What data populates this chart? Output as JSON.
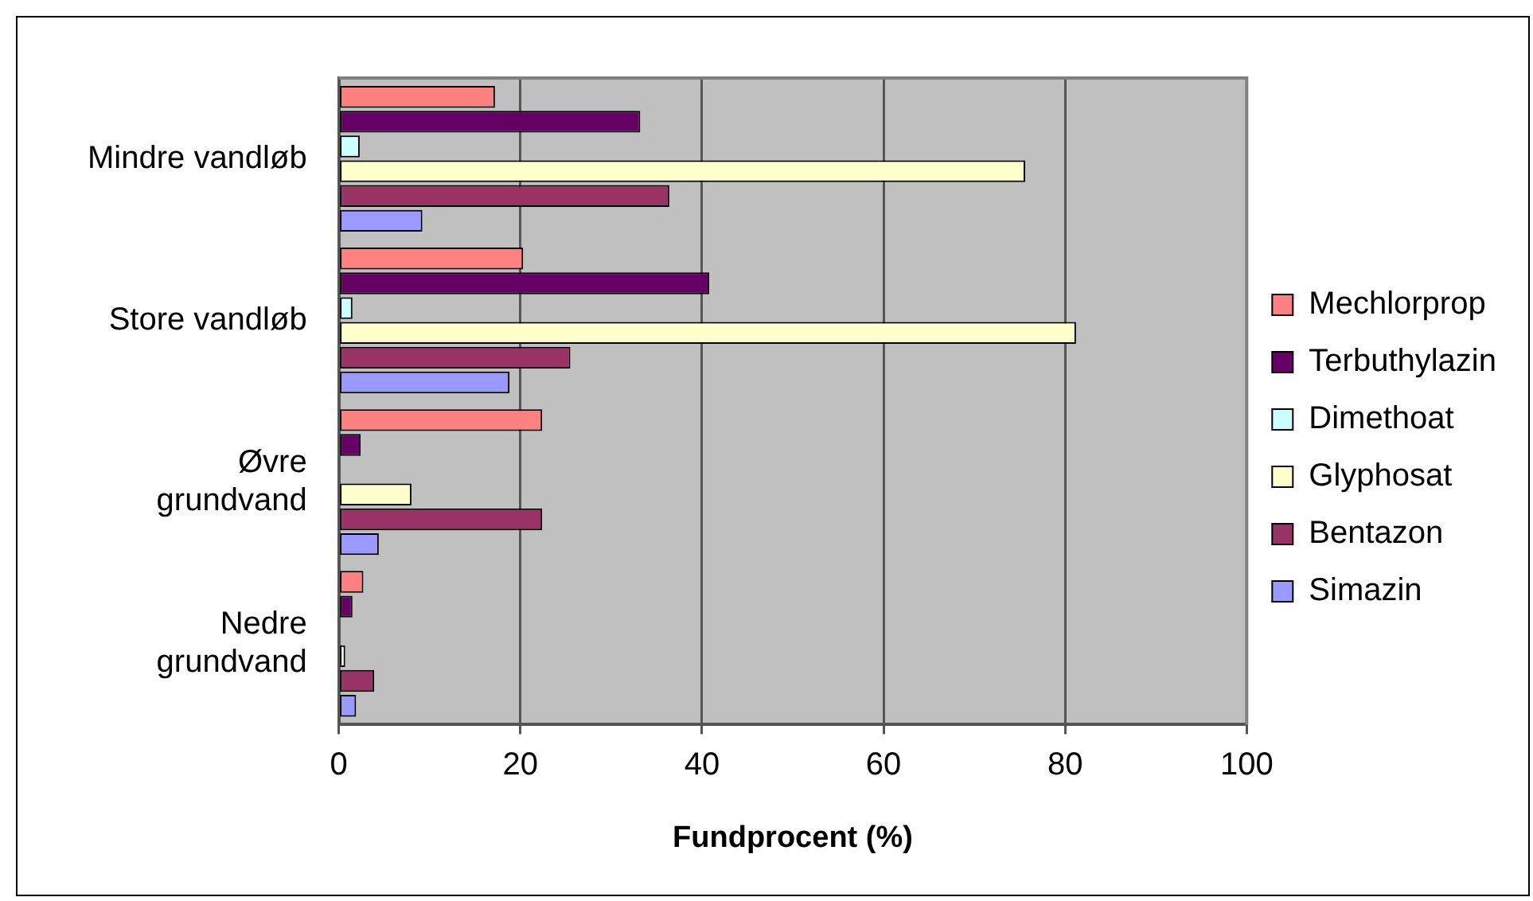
{
  "chart_data": {
    "type": "bar",
    "orientation": "horizontal",
    "xlabel": "Fundprocent (%)",
    "categories": [
      "Mindre vandløb",
      "Store vandløb",
      "Øvre grundvand",
      "Nedre grundvand"
    ],
    "series": [
      {
        "name": "Mechlorprop",
        "color": "#ff8080",
        "values": [
          17.2,
          20.3,
          22.4,
          2.7
        ]
      },
      {
        "name": "Terbuthylazin",
        "color": "#660066",
        "values": [
          33.2,
          40.8,
          2.4,
          1.5
        ]
      },
      {
        "name": "Dimethoat",
        "color": "#ccffff",
        "values": [
          2.3,
          1.5,
          0,
          0
        ]
      },
      {
        "name": "Glyphosat",
        "color": "#ffffcc",
        "values": [
          75.6,
          81.2,
          8.0,
          0.7
        ]
      },
      {
        "name": "Bentazon",
        "color": "#993366",
        "values": [
          36.4,
          25.5,
          22.4,
          3.9
        ]
      },
      {
        "name": "Simazin",
        "color": "#9999ff",
        "values": [
          9.2,
          18.8,
          4.4,
          1.9
        ]
      }
    ],
    "xlim": [
      0,
      100
    ],
    "xticks": [
      0,
      20,
      40,
      60,
      80,
      100
    ],
    "grid": "x",
    "legend": "right"
  }
}
